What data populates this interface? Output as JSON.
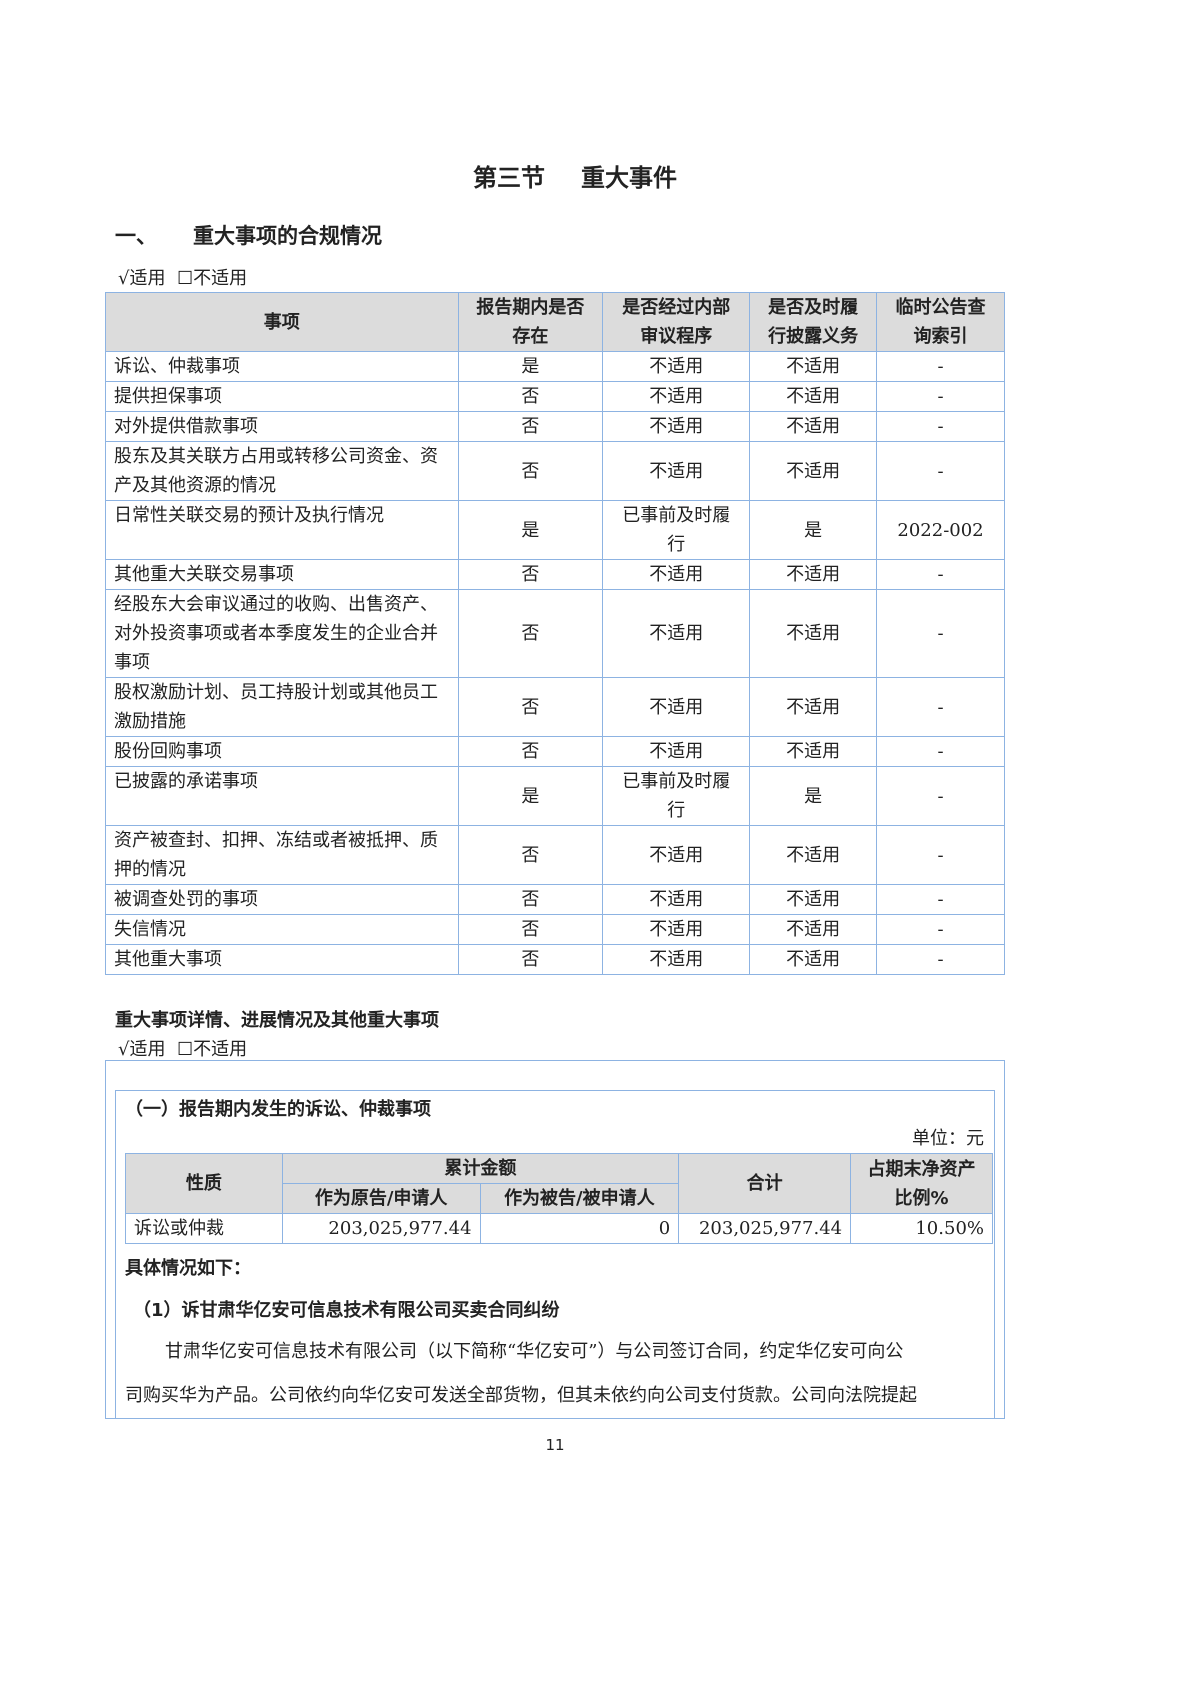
{
  "section_title": {
    "part1": "第三节",
    "part2": "重大事件"
  },
  "heading1": {
    "number": "一、",
    "text": "重大事项的合规情况"
  },
  "applicability1": {
    "applicable": "√适用",
    "not_applicable": "☐不适用"
  },
  "compliance_table": {
    "headers": [
      "事项",
      "报告期内是否存在",
      "是否经过内部审议程序",
      "是否及时履行披露义务",
      "临时公告查询索引"
    ],
    "rows": [
      [
        "诉讼、仲裁事项",
        "是",
        "不适用",
        "不适用",
        "-"
      ],
      [
        "提供担保事项",
        "否",
        "不适用",
        "不适用",
        "-"
      ],
      [
        "对外提供借款事项",
        "否",
        "不适用",
        "不适用",
        "-"
      ],
      [
        "股东及其关联方占用或转移公司资金、资产及其他资源的情况",
        "否",
        "不适用",
        "不适用",
        "-"
      ],
      [
        "日常性关联交易的预计及执行情况",
        "是",
        "已事前及时履行",
        "是",
        "2022-002"
      ],
      [
        "其他重大关联交易事项",
        "否",
        "不适用",
        "不适用",
        "-"
      ],
      [
        "经股东大会审议通过的收购、出售资产、对外投资事项或者本季度发生的企业合并事项",
        "否",
        "不适用",
        "不适用",
        "-"
      ],
      [
        "股权激励计划、员工持股计划或其他员工激励措施",
        "否",
        "不适用",
        "不适用",
        "-"
      ],
      [
        "股份回购事项",
        "否",
        "不适用",
        "不适用",
        "-"
      ],
      [
        "已披露的承诺事项",
        "是",
        "已事前及时履行",
        "是",
        "-"
      ],
      [
        "资产被查封、扣押、冻结或者被抵押、质押的情况",
        "否",
        "不适用",
        "不适用",
        "-"
      ],
      [
        "被调查处罚的事项",
        "否",
        "不适用",
        "不适用",
        "-"
      ],
      [
        "失信情况",
        "否",
        "不适用",
        "不适用",
        "-"
      ],
      [
        "其他重大事项",
        "否",
        "不适用",
        "不适用",
        "-"
      ]
    ]
  },
  "heading2": "重大事项详情、进展情况及其他重大事项",
  "applicability2": {
    "applicable": "√适用",
    "not_applicable": "☐不适用"
  },
  "litigation": {
    "subtitle": "（一）报告期内发生的诉讼、仲裁事项",
    "unit": "单位：元",
    "headers": {
      "nature": "性质",
      "cumulative": "累计金额",
      "plaintiff": "作为原告/申请人",
      "defendant": "作为被告/被申请人",
      "total": "合计",
      "ratio": "占期末净资产比例%"
    },
    "row": {
      "nature": "诉讼或仲裁",
      "plaintiff": "203,025,977.44",
      "defendant": "0",
      "total": "203,025,977.44",
      "ratio": "10.50%"
    },
    "details_label": "具体情况如下：",
    "case_title": "（1）诉甘肃华亿安可信息技术有限公司买卖合同纠纷",
    "case_line1": "甘肃华亿安可信息技术有限公司（以下简称“华亿安可”）与公司签订合同，约定华亿安可向公",
    "case_line2": "司购买华为产品。公司依约向华亿安可发送全部货物，但其未依约向公司支付货款。公司向法院提起"
  },
  "page_number": "11"
}
